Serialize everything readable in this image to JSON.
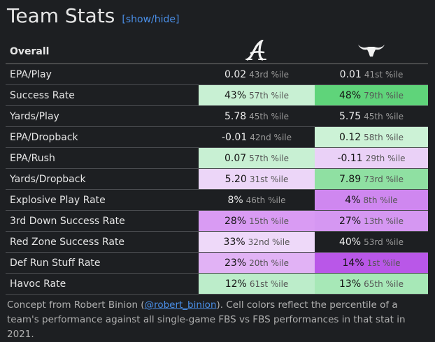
{
  "title": "Team Stats",
  "toggle": "[show/hide]",
  "header": {
    "label": "Overall",
    "team1_logo": "alabama-script-a-icon",
    "team2_logo": "texas-longhorn-icon"
  },
  "rows": [
    {
      "name": "EPA/Play",
      "t1": {
        "v": "0.02",
        "p": "43rd %ile",
        "bg": ""
      },
      "t2": {
        "v": "0.01",
        "p": "41st %ile",
        "bg": ""
      }
    },
    {
      "name": "Success Rate",
      "t1": {
        "v": "43%",
        "p": "57th %ile",
        "bg": "#c8f0d3"
      },
      "t2": {
        "v": "48%",
        "p": "79th %ile",
        "bg": "#5fd47a"
      }
    },
    {
      "name": "Yards/Play",
      "t1": {
        "v": "5.78",
        "p": "45th %ile",
        "bg": ""
      },
      "t2": {
        "v": "5.75",
        "p": "45th %ile",
        "bg": ""
      }
    },
    {
      "name": "EPA/Dropback",
      "t1": {
        "v": "-0.01",
        "p": "42nd %ile",
        "bg": ""
      },
      "t2": {
        "v": "0.12",
        "p": "58th %ile",
        "bg": "#ccf2d6"
      }
    },
    {
      "name": "EPA/Rush",
      "t1": {
        "v": "0.07",
        "p": "57th %ile",
        "bg": "#c8f0d3"
      },
      "t2": {
        "v": "-0.11",
        "p": "29th %ile",
        "bg": "#ead1f7"
      }
    },
    {
      "name": "Yards/Dropback",
      "t1": {
        "v": "5.20",
        "p": "31st %ile",
        "bg": "#ecd6f8"
      },
      "t2": {
        "v": "7.89",
        "p": "73rd %ile",
        "bg": "#8fe0a2"
      }
    },
    {
      "name": "Explosive Play Rate",
      "t1": {
        "v": "8%",
        "p": "46th %ile",
        "bg": ""
      },
      "t2": {
        "v": "4%",
        "p": "8th %ile",
        "bg": "#cf87f0"
      }
    },
    {
      "name": "3rd Down Success Rate",
      "t1": {
        "v": "28%",
        "p": "15th %ile",
        "bg": "#d99bf3"
      },
      "t2": {
        "v": "27%",
        "p": "13th %ile",
        "bg": "#d597f2"
      }
    },
    {
      "name": "Red Zone Success Rate",
      "t1": {
        "v": "33%",
        "p": "32nd %ile",
        "bg": "#eed9f9"
      },
      "t2": {
        "v": "40%",
        "p": "53rd %ile",
        "bg": ""
      }
    },
    {
      "name": "Def Run Stuff Rate",
      "t1": {
        "v": "23%",
        "p": "20th %ile",
        "bg": "#e1b2f5"
      },
      "t2": {
        "v": "14%",
        "p": "1st %ile",
        "bg": "#b957e8"
      }
    },
    {
      "name": "Havoc Rate",
      "t1": {
        "v": "12%",
        "p": "61st %ile",
        "bg": "#bcedca"
      },
      "t2": {
        "v": "13%",
        "p": "65th %ile",
        "bg": "#a7e8b7"
      }
    }
  ],
  "note": {
    "before": "Concept from Robert Binion (",
    "link": "@robert_binion",
    "after": "). Cell colors reflect the percentile of a team's performance against all single-game FBS vs FBS performances in that stat in 2021."
  }
}
